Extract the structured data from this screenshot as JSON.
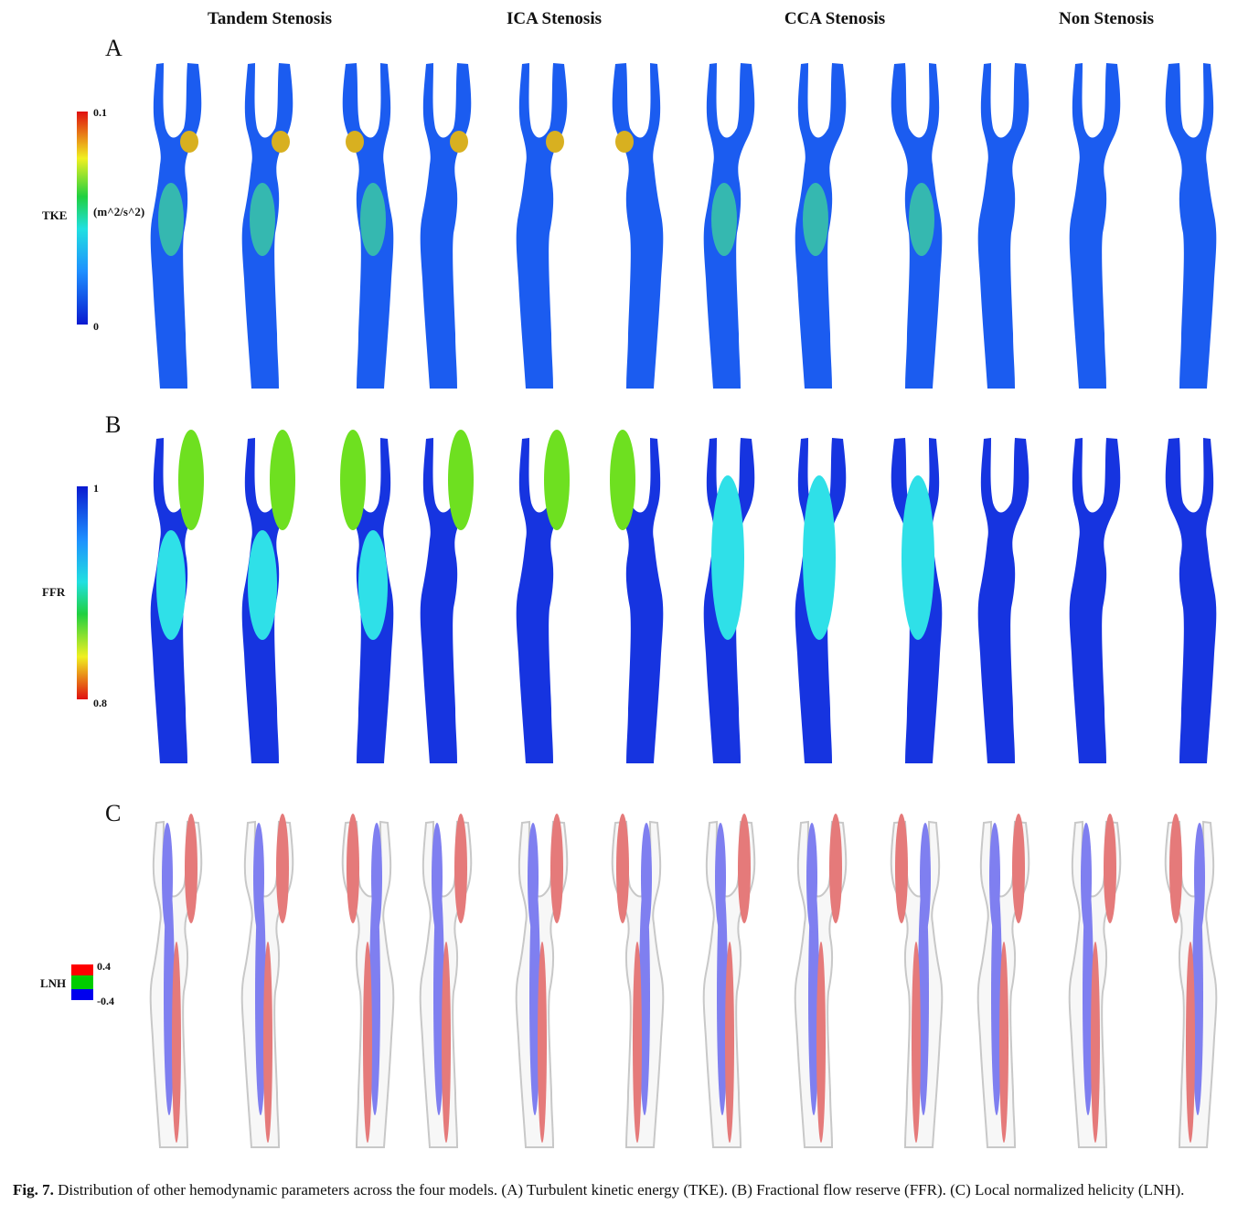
{
  "columns": [
    "Tandem Stenosis",
    "ICA Stenosis",
    "CCA Stenosis",
    "Non Stenosis"
  ],
  "panels": [
    {
      "letter": "A",
      "param": "TKE",
      "unit": "(m^2/s^2)",
      "max": "0.1",
      "min": "0"
    },
    {
      "letter": "B",
      "param": "FFR",
      "unit": "",
      "max": "1",
      "min": "0.8"
    },
    {
      "letter": "C",
      "param": "LNH",
      "unit": "",
      "max": "0.4",
      "min": "-0.4"
    }
  ],
  "caption": {
    "label": "Fig. 7.",
    "text": "Distribution of other hemodynamic parameters across the four models. (A) Turbulent kinetic energy (TKE). (B) Fractional flow reserve (FFR). (C) Local normalized helicity (LNH)."
  },
  "colors": {
    "tke_base": "#1b5cf0",
    "ffr_low": "#1634e0",
    "ffr_mid": "#2fe0e8",
    "ffr_high": "#6ee020",
    "lnh_pos": "#e57a7a",
    "lnh_neg": "#7f7ff0",
    "wall": "#c8c8c8"
  }
}
